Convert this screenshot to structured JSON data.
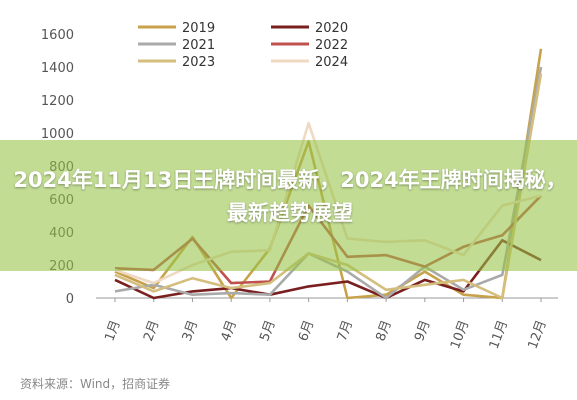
{
  "chart_data": {
    "type": "line",
    "categories": [
      "1月",
      "2月",
      "3月",
      "4月",
      "5月",
      "6月",
      "7月",
      "8月",
      "9月",
      "10月",
      "11月",
      "12月"
    ],
    "ylim": [
      0,
      1600
    ],
    "yticks": [
      0,
      200,
      400,
      600,
      800,
      1000,
      1200,
      1400,
      1600
    ],
    "grid": false,
    "legend_position": "top",
    "series": [
      {
        "name": "2019",
        "color": "#c8a24a",
        "values": [
          160,
          60,
          370,
          0,
          300,
          950,
          0,
          20,
          160,
          20,
          0,
          1510
        ]
      },
      {
        "name": "2020",
        "color": "#7a1f1f",
        "values": [
          110,
          0,
          40,
          60,
          20,
          70,
          100,
          0,
          110,
          40,
          350,
          230
        ]
      },
      {
        "name": "2021",
        "color": "#aaaaaa",
        "values": [
          40,
          80,
          20,
          30,
          20,
          270,
          160,
          0,
          190,
          50,
          140,
          1400
        ]
      },
      {
        "name": "2022",
        "color": "#c0504d",
        "values": [
          180,
          170,
          360,
          90,
          100,
          560,
          250,
          260,
          190,
          310,
          380,
          620
        ]
      },
      {
        "name": "2023",
        "color": "#d4be7e",
        "values": [
          140,
          40,
          120,
          60,
          90,
          270,
          200,
          50,
          80,
          110,
          0,
          1360
        ]
      },
      {
        "name": "2024",
        "color": "#f0d9c2",
        "values": [
          170,
          90,
          200,
          280,
          290,
          1060,
          360,
          340,
          350,
          260,
          560,
          620
        ]
      }
    ],
    "source": "资料来源：Wind，招商证券"
  },
  "overlay": {
    "title": "2024年11月13日王牌时间最新，2024年王牌时间揭秘，最新趋势展望"
  }
}
